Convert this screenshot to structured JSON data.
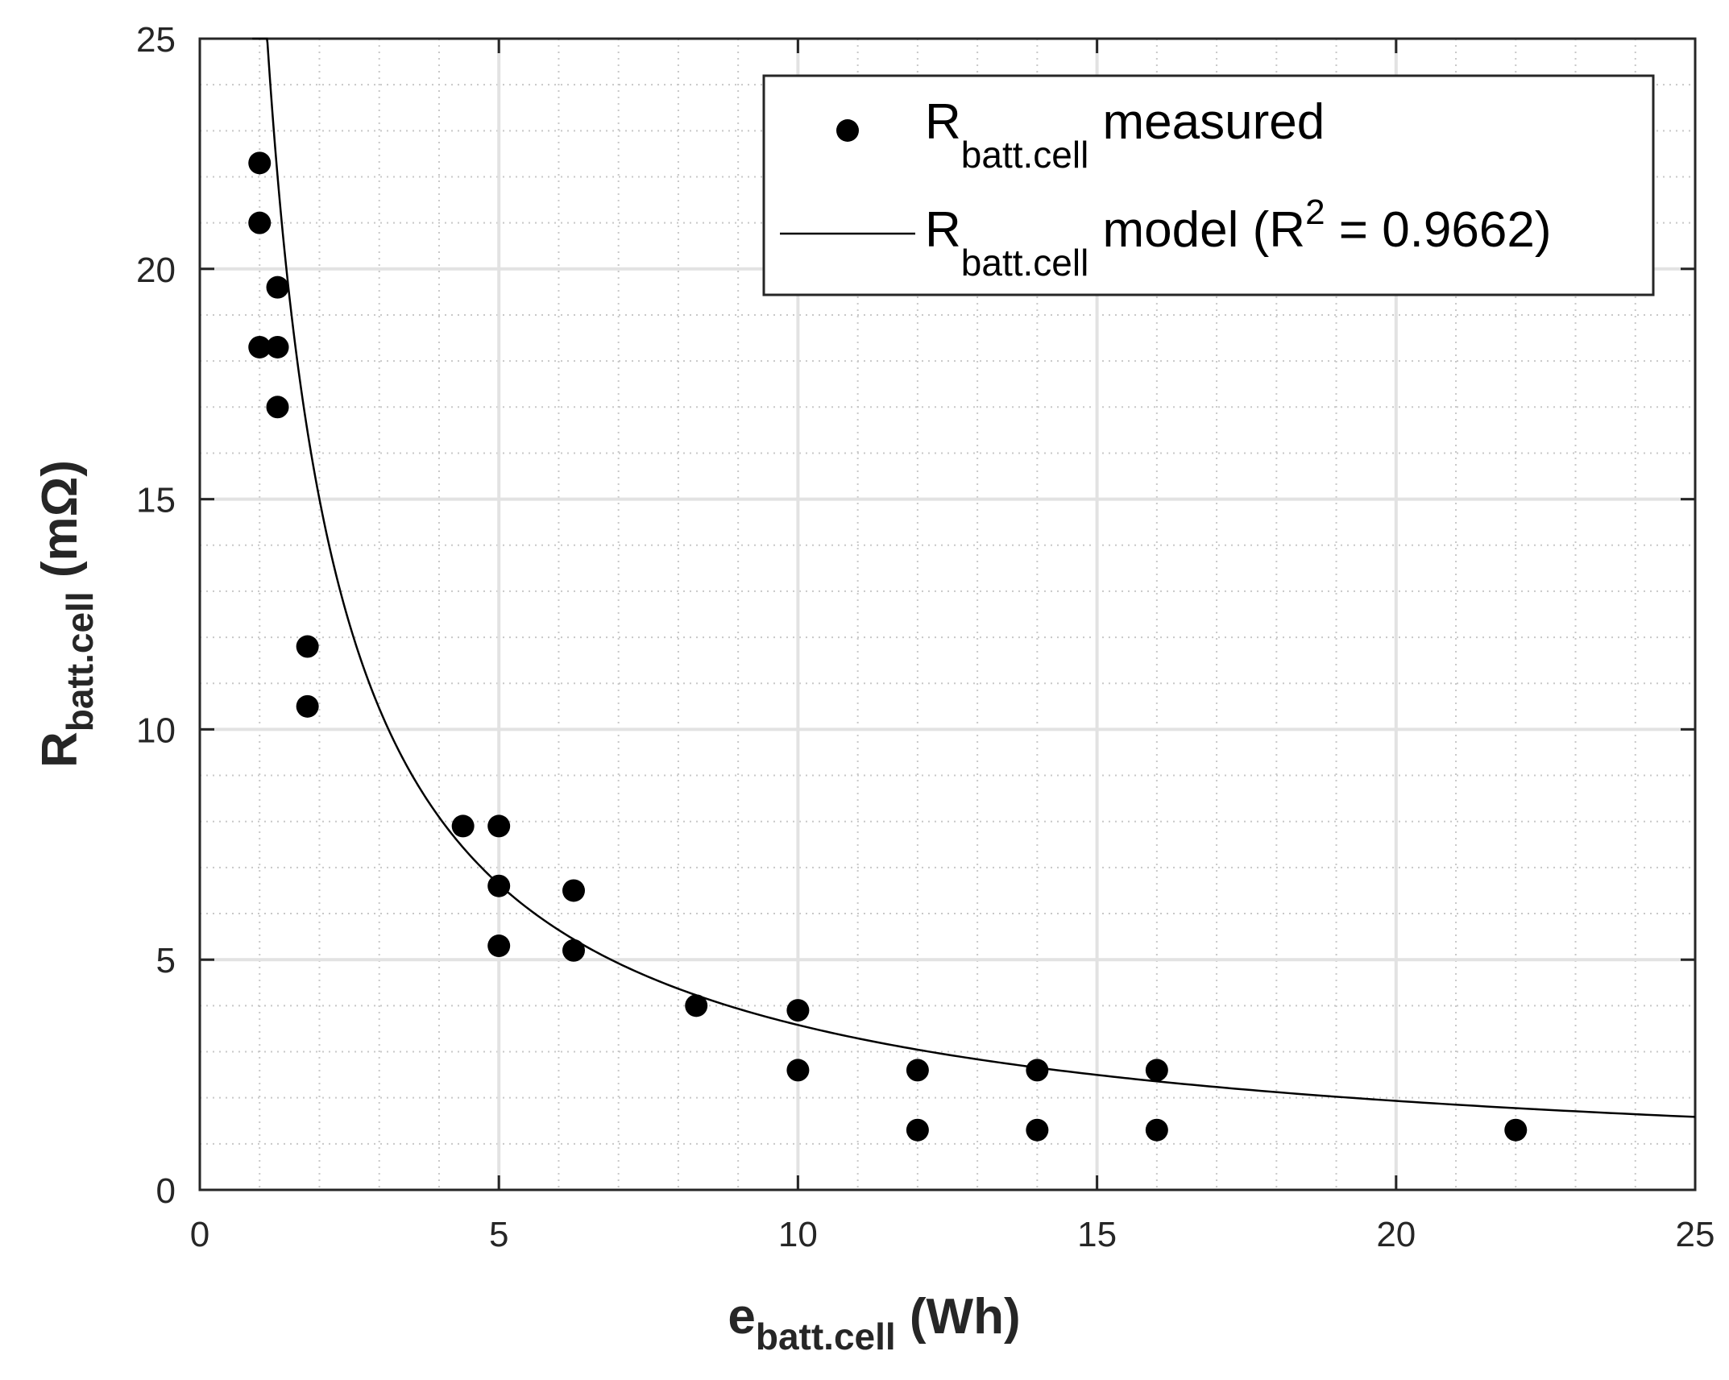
{
  "chart_data": {
    "type": "scatter",
    "title": "",
    "xlabel": {
      "main": "e",
      "sub": "batt.cell",
      "unit": " (Wh)"
    },
    "ylabel": {
      "main": "R",
      "sub": "batt.cell",
      "unit": " (mΩ)"
    },
    "xlim": [
      0,
      25
    ],
    "ylim": [
      0,
      25
    ],
    "xticks": [
      0,
      5,
      10,
      15,
      20,
      25
    ],
    "yticks": [
      0,
      5,
      10,
      15,
      20,
      25
    ],
    "grid": true,
    "legend_position": "top-right",
    "series": [
      {
        "name": "R batt.cell measured",
        "legend": {
          "main": "R",
          "sub": "batt.cell",
          "rest": " measured"
        },
        "kind": "scatter",
        "color": "#000000",
        "x": [
          1.0,
          1.0,
          1.0,
          1.3,
          1.3,
          1.3,
          1.8,
          1.8,
          4.4,
          5.0,
          5.0,
          5.0,
          6.25,
          6.25,
          8.3,
          10.0,
          10.0,
          12.0,
          12.0,
          14.0,
          14.0,
          16.0,
          16.0,
          22.0
        ],
        "y": [
          22.3,
          21.0,
          18.3,
          19.6,
          18.3,
          17.0,
          11.8,
          10.5,
          7.9,
          7.9,
          6.6,
          5.3,
          6.5,
          5.2,
          4.0,
          3.9,
          2.6,
          2.6,
          1.3,
          2.6,
          1.3,
          2.6,
          1.3,
          1.3
        ]
      },
      {
        "name": "R batt.cell model (R2 = 0.9662)",
        "legend": {
          "main": "R",
          "sub": "batt.cell",
          "rest": " model (R",
          "sup": "2",
          "tail": " = 0.9662)"
        },
        "kind": "line",
        "color": "#000000",
        "model": {
          "form": "y = a * x^b",
          "a": 27.8,
          "b": -0.89
        },
        "x_range": [
          0.88,
          25
        ]
      }
    ]
  }
}
